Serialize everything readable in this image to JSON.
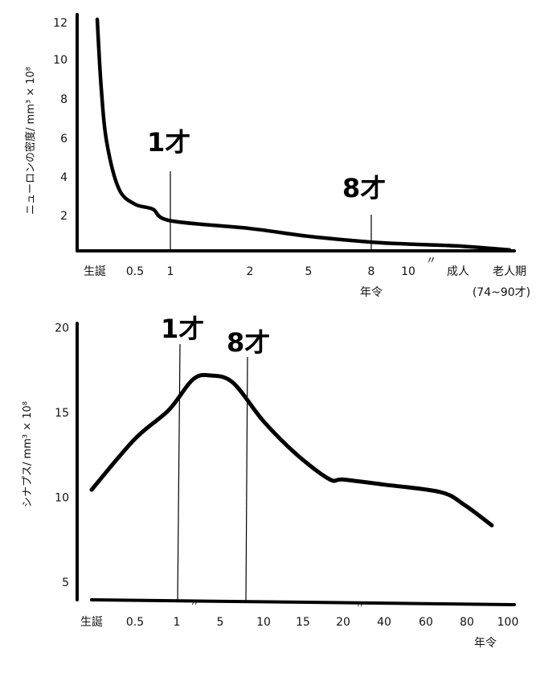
{
  "chart_data": [
    {
      "type": "line",
      "ylabel": "ニューロンの密度/ mm³ × 10⁸",
      "y_ticks": [
        "2",
        "4",
        "6",
        "8",
        "10",
        "12"
      ],
      "x_ticks": [
        "生誕",
        "0.5",
        "1",
        "2",
        "5",
        "8",
        "10",
        "成人",
        "老人期"
      ],
      "x_sublabels": [
        "年令",
        "(74~90才)"
      ],
      "axis_break": "〃",
      "annotations": [
        "1才",
        "8才"
      ],
      "series": [
        {
          "x": [
            "生誕",
            "0.5",
            "1",
            "2",
            "5",
            "8",
            "10",
            "成人",
            "老人期"
          ],
          "values": [
            12.2,
            2.8,
            2.2,
            1.8,
            1.4,
            1.1,
            1.0,
            0.9,
            0.7
          ]
        }
      ]
    },
    {
      "type": "line",
      "ylabel": "シナプス/ mm³ × 10⁸",
      "y_ticks": [
        "5",
        "10",
        "15",
        "20"
      ],
      "x_ticks": [
        "生誕",
        "0.5",
        "1",
        "5",
        "10",
        "15",
        "20",
        "40",
        "60",
        "80",
        "100"
      ],
      "x_sublabel": "年令",
      "axis_break": "〃",
      "annotations": [
        "1才",
        "8才"
      ],
      "series": [
        {
          "x": [
            "生誕",
            "0.5",
            "1",
            "5",
            "10",
            "15",
            "20",
            "40",
            "60",
            "80",
            "90"
          ],
          "values": [
            10.4,
            13.4,
            16.2,
            16.8,
            13.7,
            11.6,
            11.0,
            10.7,
            10.5,
            9.3,
            8.3
          ]
        }
      ]
    }
  ]
}
